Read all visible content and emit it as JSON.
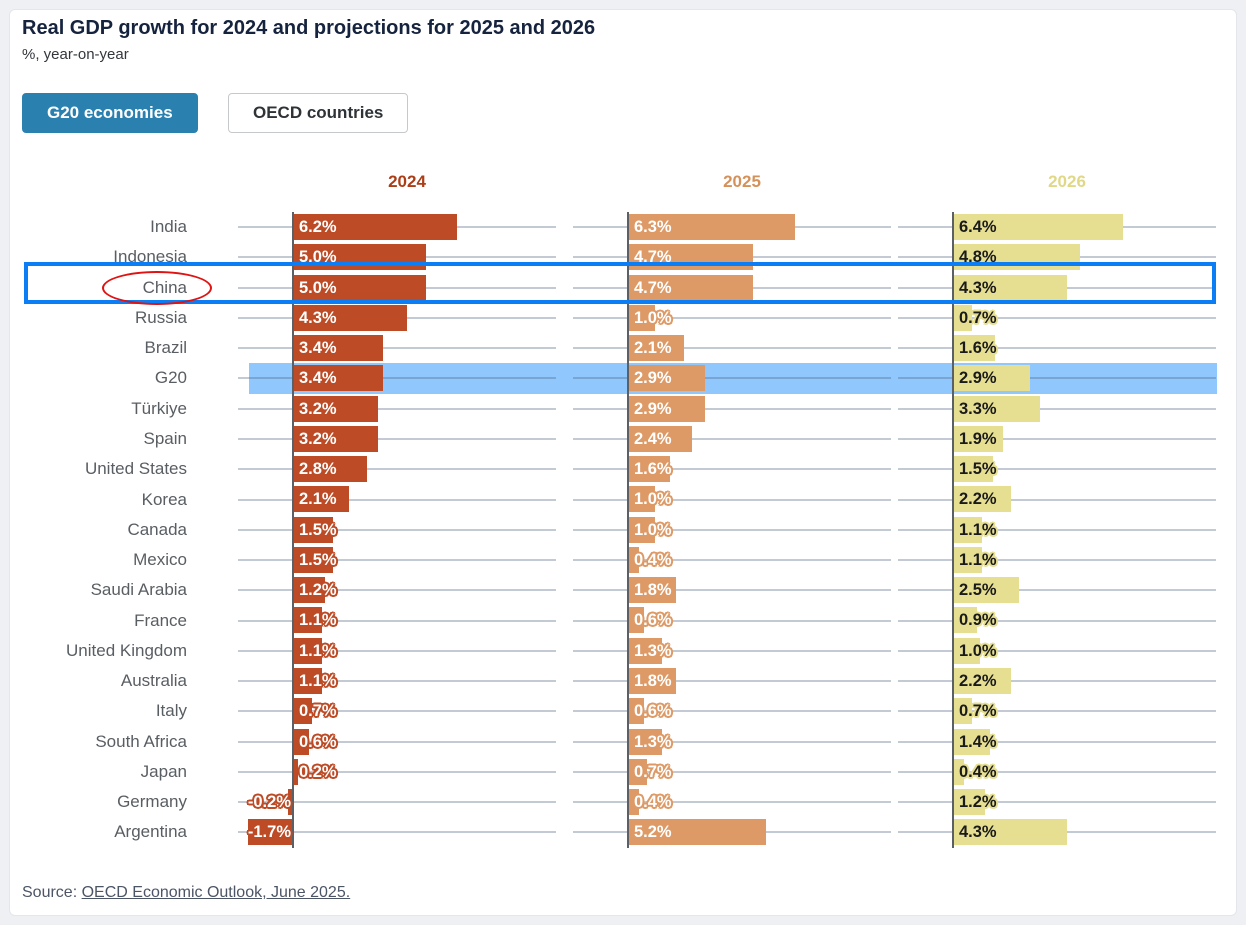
{
  "page": {
    "title": "Real GDP growth for 2024 and projections for 2025 and 2026",
    "subtitle": "%, year-on-year"
  },
  "tabs": [
    {
      "label": "G20 economies",
      "active": true
    },
    {
      "label": "OECD countries",
      "active": false
    }
  ],
  "chart_data": {
    "type": "bar",
    "orientation": "horizontal",
    "title": "Real GDP growth for 2024 and projections for 2025 and 2026",
    "unit_label": "%, year-on-year",
    "value_axis_range": [
      -2,
      6.5
    ],
    "grid": true,
    "categories": [
      "India",
      "Indonesia",
      "China",
      "Russia",
      "Brazil",
      "G20",
      "Türkiye",
      "Spain",
      "United States",
      "Korea",
      "Canada",
      "Mexico",
      "Saudi Arabia",
      "France",
      "United Kingdom",
      "Australia",
      "Italy",
      "South Africa",
      "Japan",
      "Germany",
      "Argentina"
    ],
    "series": [
      {
        "name": "2024",
        "bar_color": "#bc4b26",
        "header_color": "#ab3d17",
        "label_text_color": "#ffffff",
        "values": [
          6.2,
          5.0,
          5.0,
          4.3,
          3.4,
          3.4,
          3.2,
          3.2,
          2.8,
          2.1,
          1.5,
          1.5,
          1.2,
          1.1,
          1.1,
          1.1,
          0.7,
          0.6,
          0.2,
          -0.2,
          -1.7
        ]
      },
      {
        "name": "2025",
        "bar_color": "#dd9a66",
        "header_color": "#d5915a",
        "label_text_color": "#ffffff",
        "values": [
          6.3,
          4.7,
          4.7,
          1.0,
          2.1,
          2.9,
          2.9,
          2.4,
          1.6,
          1.0,
          1.0,
          0.4,
          1.8,
          0.6,
          1.3,
          1.8,
          0.6,
          1.3,
          0.7,
          0.4,
          5.2
        ]
      },
      {
        "name": "2026",
        "bar_color": "#e6df92",
        "header_color": "#e0d887",
        "label_text_color": "#1a1a1a",
        "values": [
          6.4,
          4.8,
          4.3,
          0.7,
          1.6,
          2.9,
          3.3,
          1.9,
          1.5,
          2.2,
          1.1,
          1.1,
          2.5,
          0.9,
          1.0,
          2.2,
          0.7,
          1.4,
          0.4,
          1.2,
          4.3
        ]
      }
    ],
    "annotations": {
      "highlight_band_row": "G20",
      "highlight_band_color": "#90c7fd",
      "boxed_row": "China",
      "box_color": "#0b7ef5",
      "circled_label": "China",
      "circle_color": "#e01212"
    },
    "value_label_format": "one-decimal-percent"
  },
  "source": {
    "prefix": "Source: ",
    "link_text": "OECD Economic Outlook, June 2025."
  }
}
